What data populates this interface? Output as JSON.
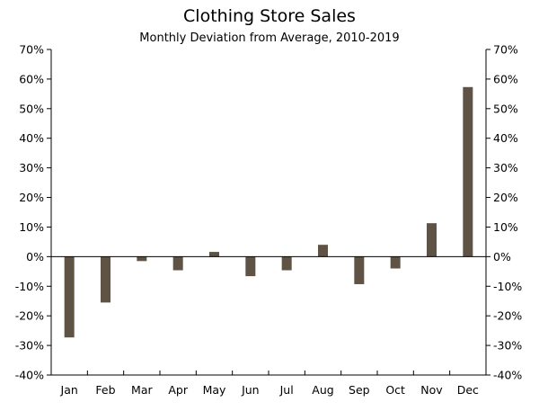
{
  "chart_data": {
    "type": "bar",
    "title": "Clothing Store Sales",
    "subtitle": "Monthly Deviation from Average, 2010-2019",
    "xlabel": "",
    "ylabel": "",
    "categories": [
      "Jan",
      "Feb",
      "Mar",
      "Apr",
      "May",
      "Jun",
      "Jul",
      "Aug",
      "Sep",
      "Oct",
      "Nov",
      "Dec"
    ],
    "values": [
      -27.3,
      -15.5,
      -1.5,
      -4.6,
      1.6,
      -6.6,
      -4.6,
      4.0,
      -9.3,
      -4.0,
      11.3,
      57.3
    ],
    "ylim": [
      -40,
      70
    ],
    "ytick_values": [
      -40,
      -30,
      -20,
      -10,
      0,
      10,
      20,
      30,
      40,
      50,
      60,
      70
    ],
    "ytick_labels": [
      "-40%",
      "-30%",
      "-20%",
      "-10%",
      "0%",
      "10%",
      "20%",
      "30%",
      "40%",
      "50%",
      "60%",
      "70%"
    ],
    "grid": false,
    "legend": "none",
    "bar_color": "#5e5344"
  }
}
